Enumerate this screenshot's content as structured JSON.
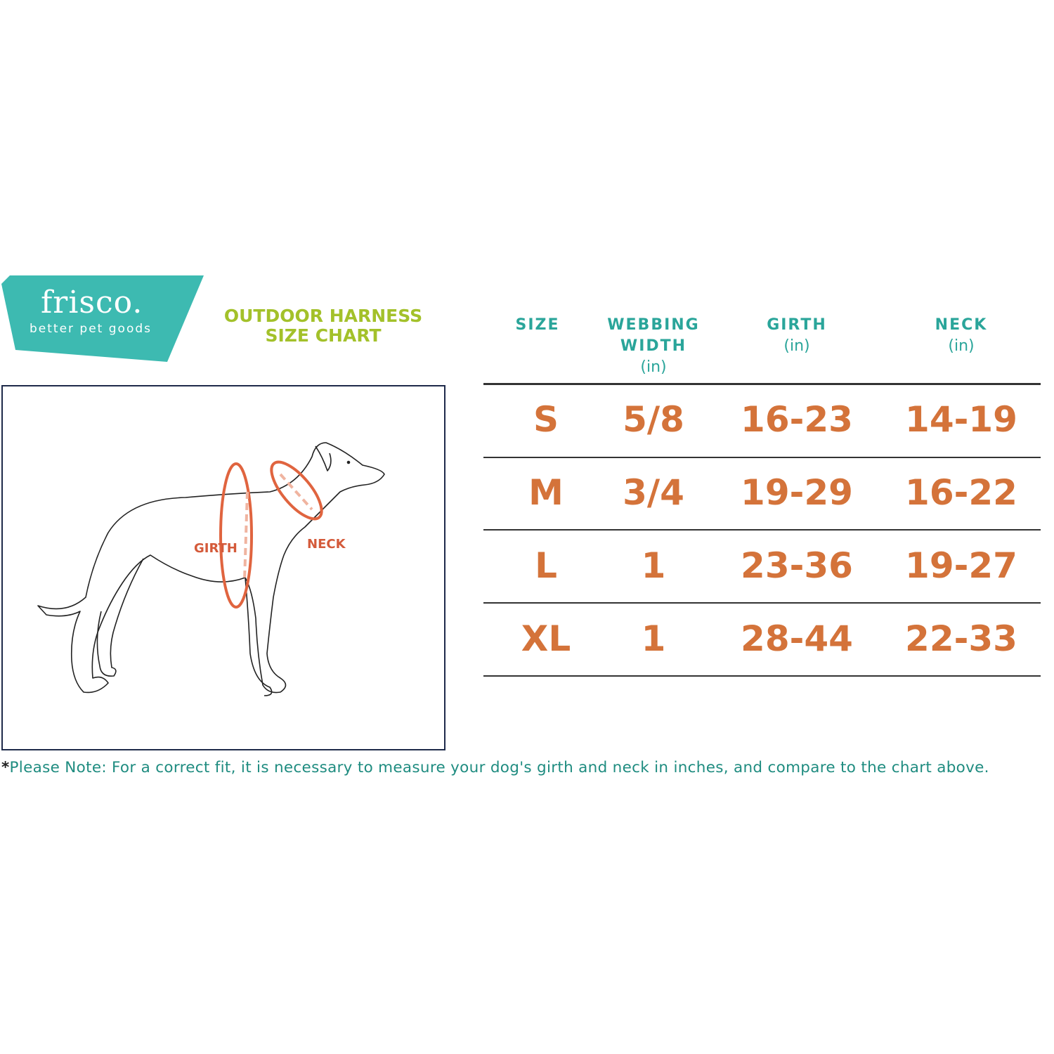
{
  "logo": {
    "name": "frisco.",
    "tagline": "better pet goods",
    "color": "#3dbab1"
  },
  "title": {
    "line1": "OUTDOOR HARNESS",
    "line2": "SIZE CHART",
    "color": "#a3c12a"
  },
  "illustration": {
    "girth_label": "GIRTH",
    "neck_label": "NECK",
    "accent": "#e0643f"
  },
  "table": {
    "headers": [
      {
        "label": "SIZE",
        "unit": ""
      },
      {
        "label": "WEBBING WIDTH",
        "unit": "(in)"
      },
      {
        "label": "GIRTH",
        "unit": "(in)"
      },
      {
        "label": "NECK",
        "unit": "(in)"
      }
    ],
    "rows": [
      [
        "S",
        "5/8",
        "16-23",
        "14-19"
      ],
      [
        "M",
        "3/4",
        "19-29",
        "16-22"
      ],
      [
        "L",
        "1",
        "23-36",
        "19-27"
      ],
      [
        "XL",
        "1",
        "28-44",
        "22-33"
      ]
    ],
    "header_color": "#2aa59a",
    "value_color": "#d4733a"
  },
  "note": {
    "star": "*",
    "text": "Please Note: For a correct fit, it is necessary to measure your dog's girth and neck in inches, and compare to the chart above."
  }
}
